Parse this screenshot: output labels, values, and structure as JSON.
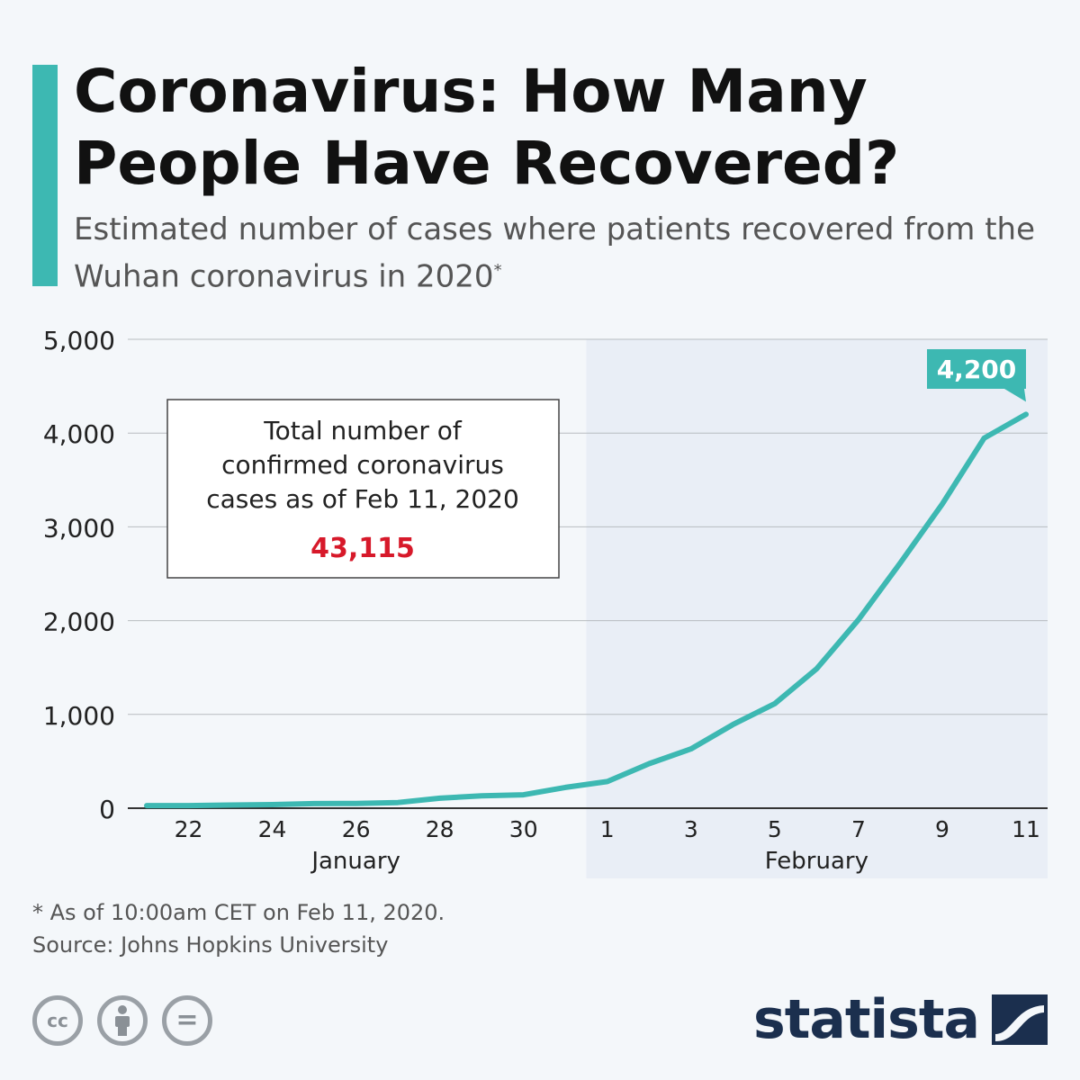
{
  "header": {
    "title": "Coronavirus: How Many People Have Recovered?",
    "subtitle": "Estimated number of cases where patients recovered from the Wuhan coronavirus in 2020",
    "subtitle_mark": "*"
  },
  "colors": {
    "accent": "#3db8b2",
    "highlight": "#d7192a",
    "february_band": "#e9eef6",
    "grid": "#b8bcc0",
    "axis_text": "#222222"
  },
  "chart_data": {
    "type": "line",
    "x": [
      "Jan 21",
      "Jan 22",
      "Jan 23",
      "Jan 24",
      "Jan 25",
      "Jan 26",
      "Jan 27",
      "Jan 28",
      "Jan 29",
      "Jan 30",
      "Jan 31",
      "Feb 1",
      "Feb 2",
      "Feb 3",
      "Feb 4",
      "Feb 5",
      "Feb 6",
      "Feb 7",
      "Feb 8",
      "Feb 9",
      "Feb 10",
      "Feb 11"
    ],
    "series": [
      {
        "values": [
          28,
          28,
          34,
          38,
          49,
          51,
          60,
          107,
          132,
          143,
          222,
          284,
          475,
          632,
          892,
          1115,
          1487,
          2011,
          2616,
          3244,
          3946,
          4200
        ]
      }
    ],
    "x_tick_labels": [
      "22",
      "24",
      "26",
      "28",
      "30",
      "1",
      "3",
      "5",
      "7",
      "9",
      "11"
    ],
    "x_tick_dates": [
      "Jan 22",
      "Jan 24",
      "Jan 26",
      "Jan 28",
      "Jan 30",
      "Feb 1",
      "Feb 3",
      "Feb 5",
      "Feb 7",
      "Feb 9",
      "Feb 11"
    ],
    "x_group_labels": [
      {
        "label": "January",
        "from": "Jan 21",
        "to": "Jan 31"
      },
      {
        "label": "February",
        "from": "Feb 1",
        "to": "Feb 11"
      }
    ],
    "y_ticks": [
      0,
      1000,
      2000,
      3000,
      4000,
      5000
    ],
    "y_tick_labels": [
      "0",
      "1,000",
      "2,000",
      "3,000",
      "4,000",
      "5,000"
    ],
    "ylim": [
      0,
      5000
    ],
    "grid": true,
    "shaded_region": {
      "from": "Feb 1",
      "to": "Feb 11"
    },
    "end_label": "4,200",
    "callout": {
      "lines": [
        "Total number of",
        "confirmed coronavirus",
        "cases as of Feb 11, 2020"
      ],
      "value": "43,115"
    }
  },
  "footnote": {
    "note": "* As of 10:00am CET on Feb 11, 2020.",
    "source": "Source: Johns Hopkins University"
  },
  "license": {
    "icons": [
      "cc-icon",
      "by-attribution-icon",
      "no-derivatives-icon"
    ],
    "cc_text": "cc",
    "nd_text": "="
  },
  "brand": {
    "name": "statista",
    "icon": "statista-logo-icon"
  }
}
